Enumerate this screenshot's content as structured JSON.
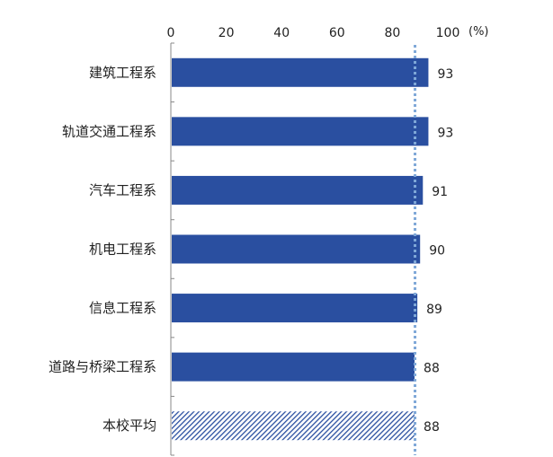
{
  "chart_data": {
    "type": "bar",
    "orientation": "horizontal",
    "title": "",
    "xlabel": "",
    "ylabel": "",
    "unit": "(%)",
    "xlim": [
      0,
      100
    ],
    "xticks": [
      "0",
      "20",
      "40",
      "60",
      "80",
      "100"
    ],
    "xtick_values": [
      0,
      20,
      40,
      60,
      80,
      100
    ],
    "categories": [
      "建筑工程系",
      "轨道交通工程系",
      "汽车工程系",
      "机电工程系",
      "信息工程系",
      "道路与桥梁工程系",
      "本校平均"
    ],
    "values": [
      93,
      93,
      91,
      90,
      89,
      88,
      88
    ],
    "value_labels": [
      "93",
      "93",
      "91",
      "90",
      "89",
      "88",
      "88"
    ],
    "reference_line": {
      "value": 88,
      "style": "dotted"
    },
    "grid": false,
    "legend": "none",
    "colors": {
      "bar": "#2a4fa0",
      "average_bar_hatch": "#2a4fa0",
      "reference_line": "#7fa8d8",
      "axis": "#888888"
    }
  }
}
